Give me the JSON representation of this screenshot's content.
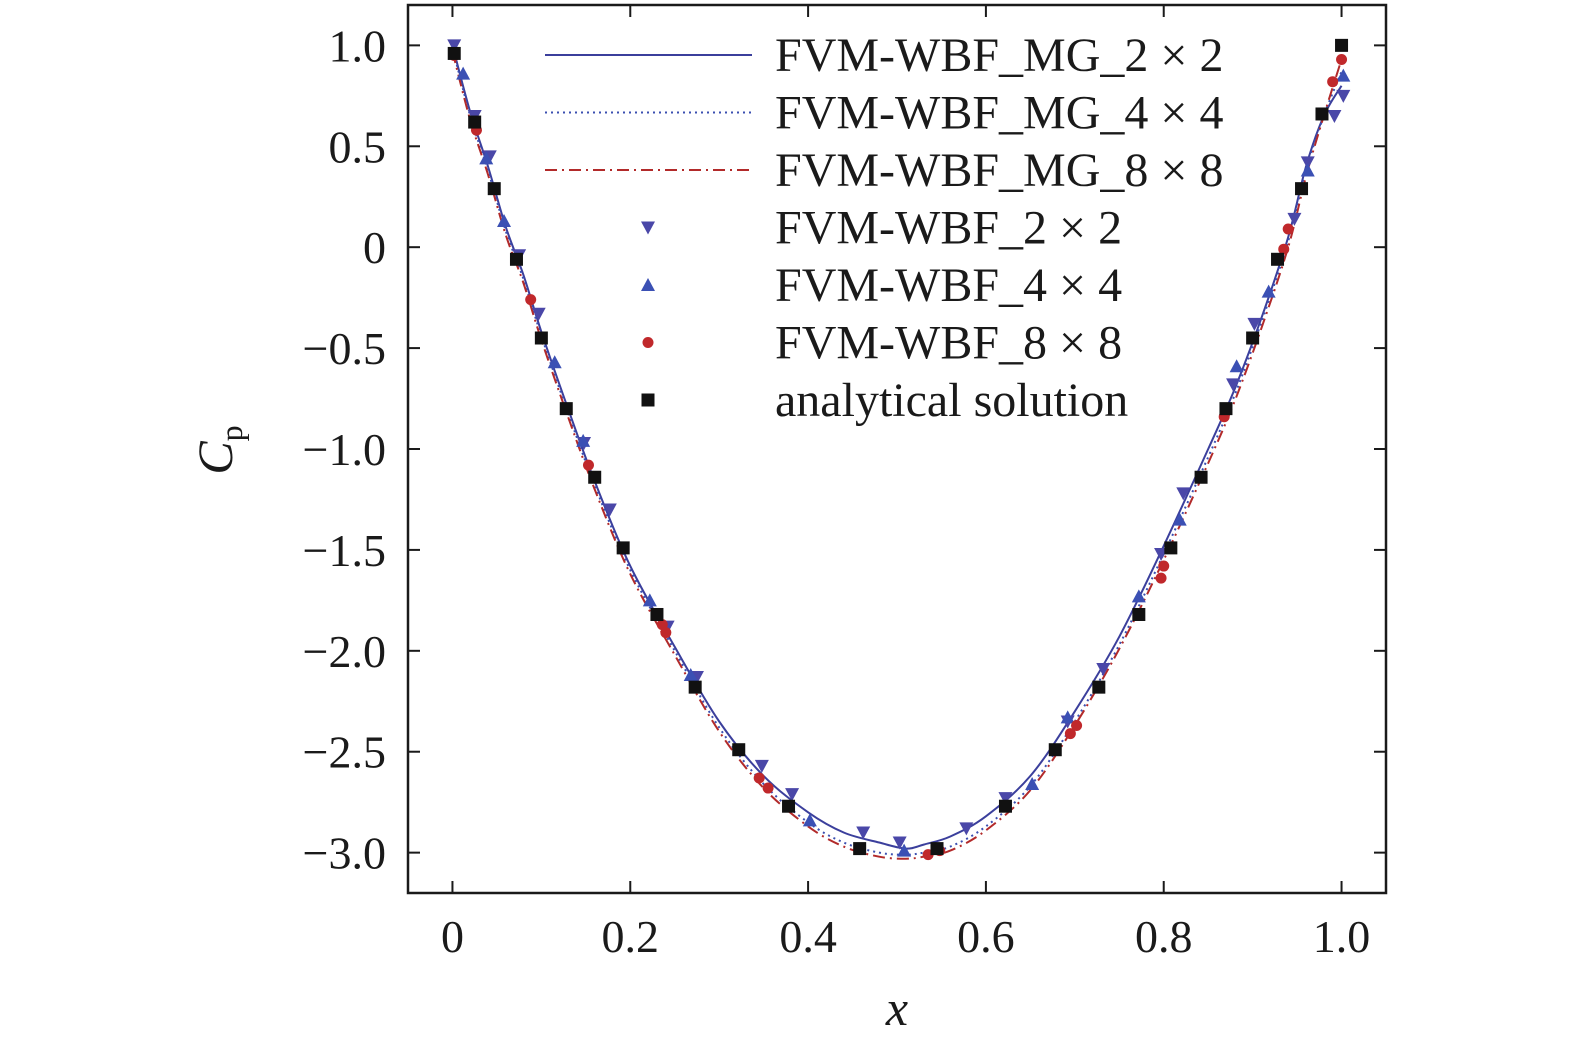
{
  "chart_data": {
    "type": "line",
    "title": "",
    "xlabel": "x",
    "ylabel": "C",
    "ylabel_sub": "p",
    "xlim": [
      -0.05,
      1.05
    ],
    "ylim": [
      -3.2,
      1.2
    ],
    "xticks": [
      0,
      0.2,
      0.4,
      0.6,
      0.8,
      1.0
    ],
    "xtick_labels": [
      "0",
      "0.2",
      "0.4",
      "0.6",
      "0.8",
      "1.0"
    ],
    "yticks": [
      1.0,
      0.5,
      0,
      -0.5,
      -1.0,
      -1.5,
      -2.0,
      -2.5,
      -3.0
    ],
    "ytick_labels": [
      "1.0",
      "0.5",
      "0",
      "−0.5",
      "−1.0",
      "−1.5",
      "−2.0",
      "−2.5",
      "−3.0"
    ],
    "grid": false,
    "legend_position": "top-right",
    "series": [
      {
        "name": "FVM-WBF_MG_2 × 2",
        "kind": "line",
        "style": "solid",
        "color": "#3b3f9c",
        "x": [
          0.0,
          0.02,
          0.04,
          0.06,
          0.08,
          0.1,
          0.13,
          0.16,
          0.2,
          0.25,
          0.3,
          0.35,
          0.4,
          0.44,
          0.48,
          0.51,
          0.53,
          0.56,
          0.6,
          0.65,
          0.7,
          0.75,
          0.8,
          0.85,
          0.88,
          0.91,
          0.94,
          0.96,
          0.98,
          1.0
        ],
        "y": [
          1.0,
          0.67,
          0.4,
          0.1,
          -0.14,
          -0.42,
          -0.8,
          -1.16,
          -1.58,
          -1.98,
          -2.35,
          -2.62,
          -2.8,
          -2.9,
          -2.95,
          -2.98,
          -2.96,
          -2.92,
          -2.82,
          -2.62,
          -2.3,
          -1.93,
          -1.48,
          -1.0,
          -0.7,
          -0.35,
          0.05,
          0.4,
          0.65,
          0.8
        ]
      },
      {
        "name": "FVM-WBF_MG_4 × 4",
        "kind": "line",
        "style": "dotted",
        "color": "#3b4fb0",
        "x": [
          0.0,
          0.02,
          0.04,
          0.06,
          0.08,
          0.1,
          0.13,
          0.16,
          0.2,
          0.25,
          0.3,
          0.35,
          0.4,
          0.44,
          0.48,
          0.51,
          0.53,
          0.56,
          0.6,
          0.65,
          0.7,
          0.75,
          0.8,
          0.85,
          0.88,
          0.91,
          0.94,
          0.96,
          0.98,
          1.0
        ],
        "y": [
          0.99,
          0.65,
          0.38,
          0.08,
          -0.16,
          -0.44,
          -0.82,
          -1.18,
          -1.6,
          -2.0,
          -2.38,
          -2.66,
          -2.85,
          -2.95,
          -3.0,
          -3.01,
          -3.0,
          -2.97,
          -2.87,
          -2.67,
          -2.35,
          -1.97,
          -1.52,
          -1.04,
          -0.73,
          -0.37,
          0.03,
          0.38,
          0.65,
          0.87
        ]
      },
      {
        "name": "FVM-WBF_MG_8 × 8",
        "kind": "line",
        "style": "dashdot",
        "color": "#b22a2a",
        "x": [
          0.0,
          0.02,
          0.04,
          0.06,
          0.08,
          0.1,
          0.13,
          0.16,
          0.2,
          0.25,
          0.3,
          0.35,
          0.4,
          0.44,
          0.48,
          0.51,
          0.53,
          0.56,
          0.6,
          0.65,
          0.7,
          0.75,
          0.8,
          0.85,
          0.88,
          0.91,
          0.94,
          0.96,
          0.98,
          1.0
        ],
        "y": [
          0.97,
          0.63,
          0.36,
          0.06,
          -0.18,
          -0.46,
          -0.84,
          -1.2,
          -1.62,
          -2.02,
          -2.4,
          -2.68,
          -2.87,
          -2.97,
          -3.02,
          -3.03,
          -3.02,
          -2.99,
          -2.89,
          -2.69,
          -2.37,
          -1.99,
          -1.55,
          -1.07,
          -0.76,
          -0.4,
          0.0,
          0.35,
          0.65,
          0.93
        ]
      },
      {
        "name": "FVM-WBF_2 × 2",
        "kind": "scatter",
        "marker": "triangle-down",
        "color": "#4a47a8",
        "x": [
          0.002,
          0.025,
          0.042,
          0.075,
          0.097,
          0.148,
          0.177,
          0.242,
          0.275,
          0.348,
          0.382,
          0.462,
          0.503,
          0.578,
          0.622,
          0.692,
          0.732,
          0.797,
          0.822,
          0.878,
          0.902,
          0.947,
          0.962,
          0.992,
          1.002
        ],
        "y": [
          1.0,
          0.65,
          0.45,
          -0.04,
          -0.33,
          -0.97,
          -1.3,
          -1.88,
          -2.13,
          -2.57,
          -2.71,
          -2.9,
          -2.95,
          -2.88,
          -2.73,
          -2.35,
          -2.09,
          -1.52,
          -1.22,
          -0.68,
          -0.38,
          0.14,
          0.42,
          0.65,
          0.75
        ]
      },
      {
        "name": "FVM-WBF_4 × 4",
        "kind": "scatter",
        "marker": "triangle-up",
        "color": "#3b50b4",
        "x": [
          0.012,
          0.038,
          0.058,
          0.115,
          0.147,
          0.222,
          0.268,
          0.402,
          0.508,
          0.652,
          0.692,
          0.772,
          0.818,
          0.882,
          0.918,
          0.962,
          1.002
        ],
        "y": [
          0.86,
          0.44,
          0.13,
          -0.57,
          -0.96,
          -1.75,
          -2.12,
          -2.84,
          -2.99,
          -2.66,
          -2.33,
          -1.73,
          -1.35,
          -0.59,
          -0.22,
          0.38,
          0.85
        ]
      },
      {
        "name": "FVM-WBF_8 × 8",
        "kind": "scatter",
        "marker": "circle",
        "color": "#c0282b",
        "x": [
          0.002,
          0.027,
          0.088,
          0.153,
          0.236,
          0.24,
          0.345,
          0.355,
          0.535,
          0.548,
          0.695,
          0.702,
          0.797,
          0.8,
          0.868,
          0.935,
          0.94,
          0.99,
          1.0
        ],
        "y": [
          0.95,
          0.58,
          -0.26,
          -1.08,
          -1.87,
          -1.91,
          -2.63,
          -2.68,
          -3.01,
          -2.99,
          -2.41,
          -2.37,
          -1.64,
          -1.58,
          -0.84,
          -0.01,
          0.09,
          0.82,
          0.93
        ]
      },
      {
        "name": "analytical solution",
        "kind": "scatter",
        "marker": "square",
        "color": "#111111",
        "x": [
          0.002,
          0.025,
          0.047,
          0.072,
          0.1,
          0.128,
          0.16,
          0.192,
          0.23,
          0.273,
          0.322,
          0.378,
          0.458,
          0.545,
          0.622,
          0.678,
          0.727,
          0.772,
          0.808,
          0.842,
          0.87,
          0.9,
          0.928,
          0.955,
          0.978,
          1.0
        ],
        "y": [
          0.96,
          0.62,
          0.29,
          -0.06,
          -0.45,
          -0.8,
          -1.14,
          -1.49,
          -1.82,
          -2.18,
          -2.49,
          -2.77,
          -2.98,
          -2.98,
          -2.77,
          -2.49,
          -2.18,
          -1.82,
          -1.49,
          -1.14,
          -0.8,
          -0.45,
          -0.06,
          0.29,
          0.66,
          1.0
        ]
      }
    ]
  }
}
